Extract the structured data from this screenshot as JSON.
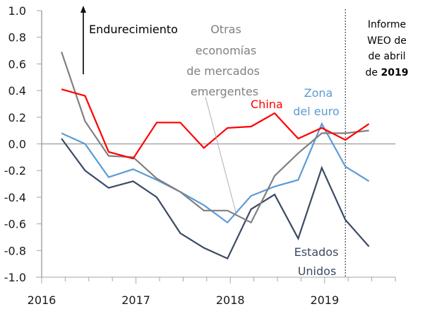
{
  "chart_data": {
    "type": "line",
    "title": "",
    "xlabel": "",
    "ylabel": "",
    "ylim": [
      -1.0,
      1.0
    ],
    "xlim": [
      2016.0,
      2019.75
    ],
    "y_ticks": [
      1.0,
      0.8,
      0.6,
      0.4,
      0.2,
      0.0,
      -0.2,
      -0.4,
      -0.6,
      -0.8,
      -1.0
    ],
    "y_tick_labels": [
      "1.0",
      "0.8",
      "0.6",
      "0.4",
      "0.2",
      "0.0",
      "-0.2",
      "-0.4",
      "-0.6",
      "-0.8",
      "-1.0"
    ],
    "x_ticks_major": [
      2016,
      2017,
      2018,
      2019
    ],
    "x_tick_labels": [
      "2016",
      "2017",
      "2018",
      "2019"
    ],
    "x_minor_step": 0.25,
    "x": [
      2016.21,
      2016.46,
      2016.71,
      2016.97,
      2017.22,
      2017.47,
      2017.72,
      2017.97,
      2018.22,
      2018.47,
      2018.72,
      2018.97,
      2019.22,
      2019.47
    ],
    "series": [
      {
        "name": "China",
        "color": "#FF0000",
        "values": [
          0.41,
          0.36,
          -0.06,
          -0.11,
          0.16,
          0.16,
          -0.03,
          0.12,
          0.13,
          0.23,
          0.04,
          0.12,
          0.03,
          0.15
        ]
      },
      {
        "name": "Otras economías de mercados emergentes",
        "color": "#808080",
        "values": [
          0.69,
          0.17,
          -0.09,
          -0.1,
          -0.26,
          -0.36,
          -0.5,
          -0.5,
          -0.59,
          -0.24,
          -0.07,
          0.08,
          0.08,
          0.1
        ]
      },
      {
        "name": "Zona del euro",
        "color": "#5B9BD5",
        "values": [
          0.08,
          0.0,
          -0.25,
          -0.19,
          -0.27,
          -0.36,
          -0.46,
          -0.59,
          -0.39,
          -0.32,
          -0.27,
          0.15,
          -0.17,
          -0.28
        ]
      },
      {
        "name": "Estados Unidos",
        "color": "#3B4A63",
        "values": [
          0.04,
          -0.2,
          -0.33,
          -0.28,
          -0.4,
          -0.67,
          -0.78,
          -0.86,
          -0.49,
          -0.38,
          -0.71,
          -0.18,
          -0.57,
          -0.77
        ]
      }
    ],
    "zero_line": true,
    "grid": false,
    "vline": {
      "x": 2019.22,
      "style": "dashed",
      "label_lines": [
        "Informe",
        "WEO de",
        "de abril"
      ],
      "label_last_prefix": "de ",
      "label_last_bold": "2019"
    },
    "annotations": {
      "arrow_label": "Endurecimiento",
      "china_label": "China",
      "other_em_label_lines": [
        "Otras",
        "economías",
        "de mercados",
        "emergentes"
      ],
      "euro_label_lines": [
        "Zona",
        "del euro"
      ],
      "us_label_lines": [
        "Estados",
        "Unidos"
      ]
    },
    "legend": "none (inline labels)"
  }
}
